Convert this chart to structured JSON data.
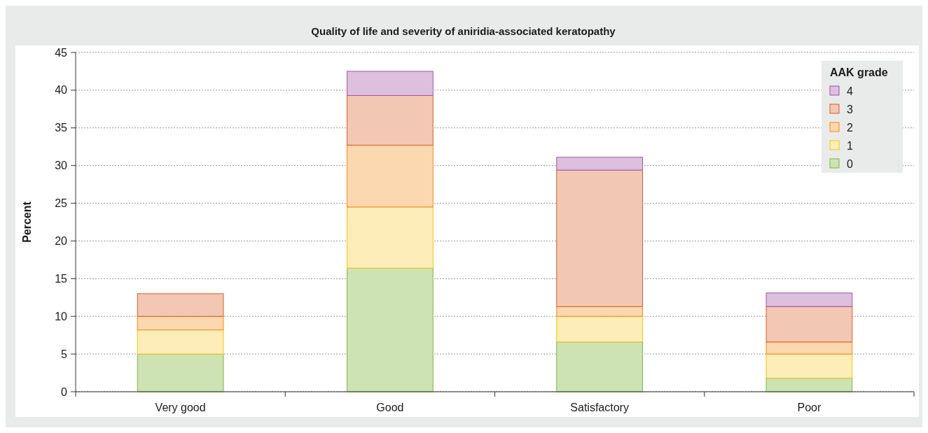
{
  "chart_data": {
    "type": "bar",
    "title": "Quality of life and severity of aniridia-associated keratopathy",
    "ylabel": "Percent",
    "legend_title": "AAK grade",
    "categories": [
      "Very good",
      "Good",
      "Satisfactory",
      "Poor"
    ],
    "stacked": true,
    "series": [
      {
        "name": "0",
        "color": "#cde3b4",
        "values": [
          5.0,
          16.4,
          6.6,
          1.8
        ]
      },
      {
        "name": "1",
        "color": "#fdedb8",
        "values": [
          3.2,
          8.1,
          3.4,
          3.2
        ]
      },
      {
        "name": "2",
        "color": "#fcd8b0",
        "values": [
          1.8,
          8.2,
          1.3,
          1.6
        ]
      },
      {
        "name": "3",
        "color": "#f2c7b4",
        "values": [
          3.0,
          6.6,
          18.1,
          4.7
        ]
      },
      {
        "name": "4",
        "color": "#dcc0de",
        "values": [
          null,
          3.2,
          1.7,
          1.8
        ]
      }
    ],
    "ylim": [
      0,
      45
    ],
    "yticks": [
      0,
      5,
      10,
      15,
      20,
      25,
      30,
      35,
      40,
      45
    ],
    "grid": "y",
    "legend": "top right"
  }
}
